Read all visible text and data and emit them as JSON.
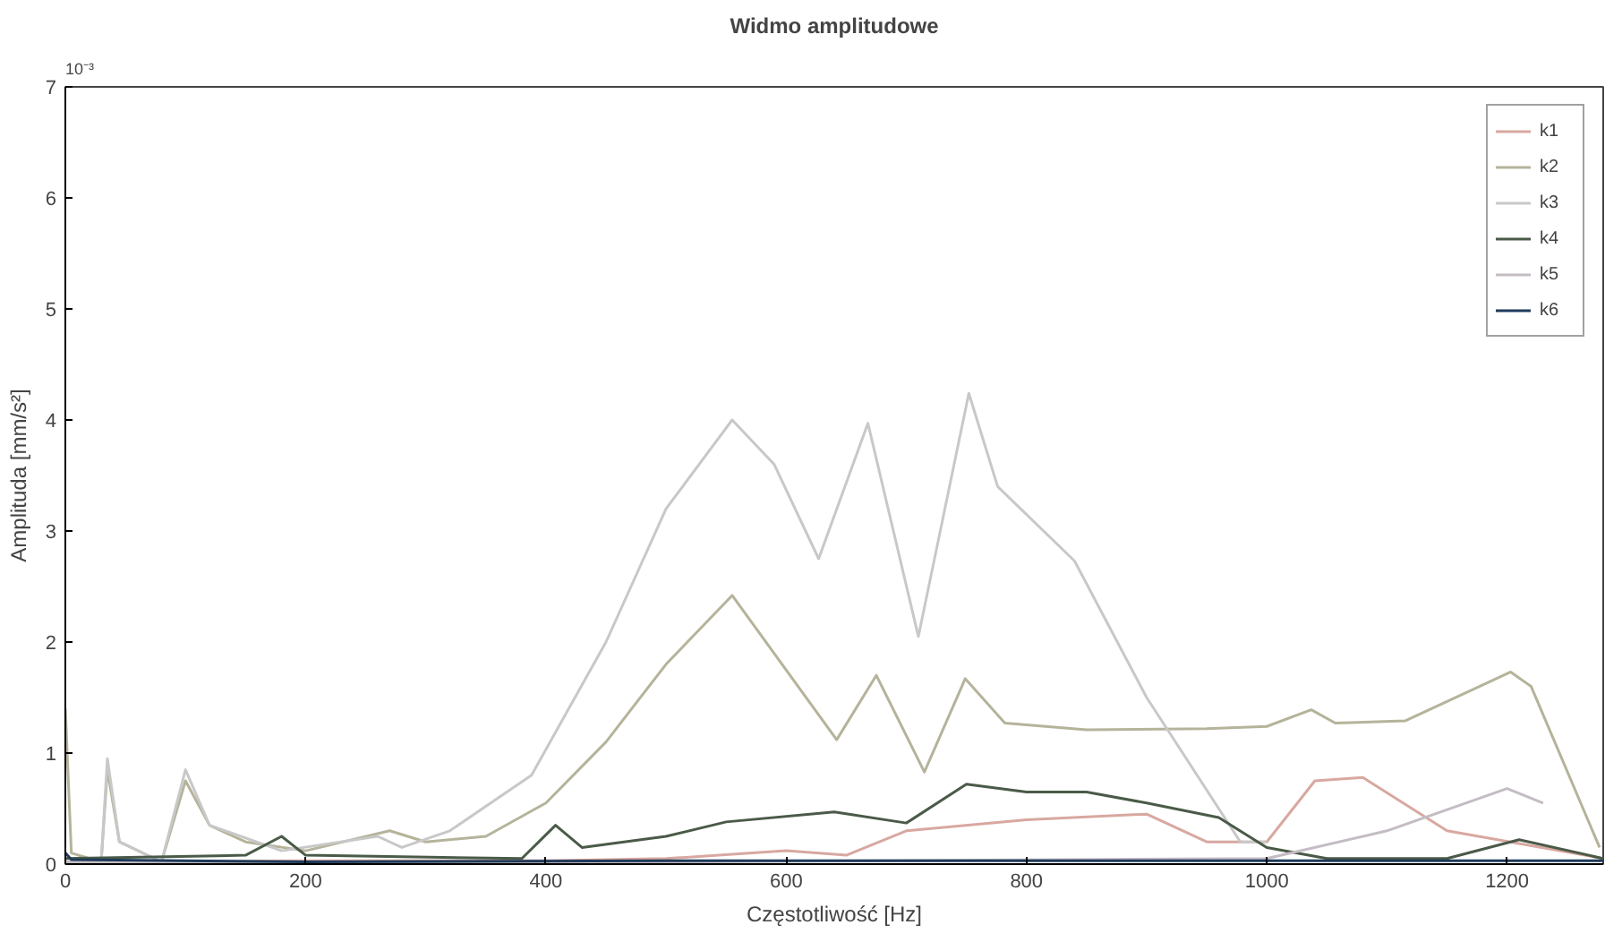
{
  "chart_data": {
    "type": "line",
    "title": "Widmo amplitudowe",
    "xlabel": "Częstotliwość [Hz]",
    "ylabel": "Amplituda [mm/s²]",
    "annotations": [
      "10⁻³"
    ],
    "xlim": [
      0,
      1280
    ],
    "ylim": [
      0,
      7
    ],
    "xticks": [
      0,
      200,
      400,
      600,
      800,
      1000,
      1200
    ],
    "yticks": [
      0,
      1,
      2,
      3,
      4,
      5,
      6,
      7
    ],
    "grid": false,
    "legend": "top right",
    "series": [
      {
        "name": "k1",
        "color": "#d8a8a0",
        "x": [
          0,
          200,
          400,
          500,
          600,
          650,
          700,
          800,
          900,
          950,
          1000,
          1040,
          1080,
          1150,
          1280
        ],
        "values": [
          0.02,
          0.03,
          0.03,
          0.05,
          0.12,
          0.08,
          0.3,
          0.4,
          0.45,
          0.2,
          0.2,
          0.75,
          0.78,
          0.3,
          0.05
        ]
      },
      {
        "name": "k2",
        "color": "#b5b39a",
        "x": [
          0,
          5,
          20,
          30,
          35,
          45,
          80,
          100,
          120,
          150,
          200,
          270,
          300,
          350,
          400,
          450,
          500,
          555,
          642,
          675,
          715,
          749,
          782,
          850,
          950,
          1000,
          1037,
          1057,
          1115,
          1203,
          1220,
          1277
        ],
        "values": [
          1.4,
          0.1,
          0.05,
          0.05,
          0.85,
          0.2,
          0.02,
          0.75,
          0.35,
          0.2,
          0.12,
          0.3,
          0.2,
          0.25,
          0.55,
          1.1,
          1.8,
          2.42,
          1.12,
          1.7,
          0.83,
          1.67,
          1.27,
          1.21,
          1.22,
          1.24,
          1.39,
          1.27,
          1.29,
          1.73,
          1.6,
          0.15
        ]
      },
      {
        "name": "k3",
        "color": "#c8c8c8",
        "x": [
          0,
          30,
          35,
          45,
          80,
          100,
          120,
          180,
          260,
          280,
          320,
          388,
          450,
          500,
          555,
          590,
          627,
          668,
          710,
          752,
          776,
          840,
          900,
          978,
          1000
        ],
        "values": [
          0.05,
          0.05,
          0.95,
          0.2,
          0.02,
          0.85,
          0.35,
          0.12,
          0.25,
          0.15,
          0.3,
          0.8,
          2.0,
          3.2,
          4.0,
          3.6,
          2.75,
          3.97,
          2.05,
          4.24,
          3.4,
          2.73,
          1.5,
          0.2,
          0.2
        ]
      },
      {
        "name": "k4",
        "color": "#4a5a48",
        "x": [
          0,
          150,
          180,
          200,
          380,
          408,
          430,
          500,
          550,
          640,
          700,
          750,
          800,
          850,
          900,
          960,
          1000,
          1050,
          1150,
          1210,
          1280
        ],
        "values": [
          0.05,
          0.08,
          0.25,
          0.08,
          0.05,
          0.35,
          0.15,
          0.25,
          0.38,
          0.47,
          0.37,
          0.72,
          0.65,
          0.65,
          0.55,
          0.42,
          0.15,
          0.05,
          0.05,
          0.22,
          0.05
        ]
      },
      {
        "name": "k5",
        "color": "#c4bcc4",
        "x": [
          0,
          500,
          1000,
          1100,
          1200,
          1230
        ],
        "values": [
          0.02,
          0.02,
          0.05,
          0.3,
          0.68,
          0.55
        ]
      },
      {
        "name": "k6",
        "color": "#1e3a5a",
        "x": [
          0,
          5,
          200,
          500,
          800,
          1280
        ],
        "values": [
          0.1,
          0.04,
          0.02,
          0.03,
          0.03,
          0.03
        ]
      }
    ]
  }
}
